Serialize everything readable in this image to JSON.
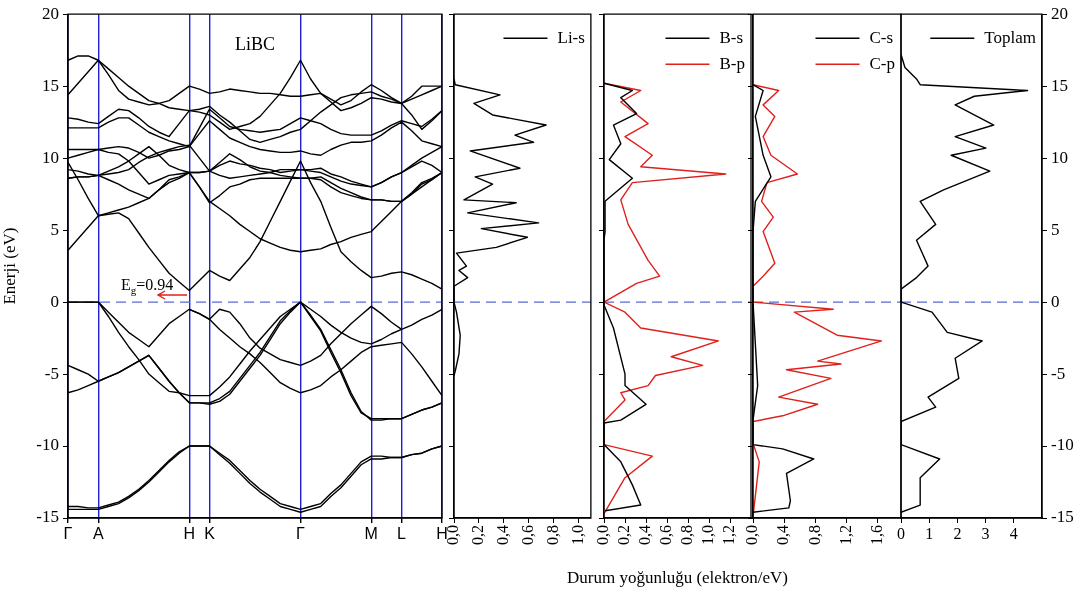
{
  "chart_data": [
    {
      "type": "line",
      "title": "LiBC",
      "ylabel": "Enerji (eV)",
      "marker": "none",
      "grid": "x",
      "legend": false,
      "categories": [
        "Γ",
        null,
        null,
        "A",
        null,
        null,
        null,
        null,
        null,
        null,
        null,
        null,
        "H",
        null,
        "K",
        null,
        null,
        null,
        null,
        null,
        null,
        null,
        null,
        "Γ",
        null,
        null,
        null,
        null,
        null,
        null,
        "M",
        null,
        null,
        "L",
        null,
        null,
        null,
        "H"
      ],
      "ylim": [
        -15,
        20
      ],
      "yticks": [
        -15,
        -10,
        -5,
        0,
        5,
        10,
        15,
        20
      ],
      "ref_lines": [
        {
          "axis": "y",
          "value": 0,
          "color": "#5a6ad0",
          "line_style": "dashed"
        }
      ],
      "annotations": [
        {
          "text": "E$_{g}$=0.94",
          "x": "H",
          "y": 0.94
        }
      ],
      "series": [
        {
          "color": "#000000",
          "values": [
            -14.2,
            -14.2,
            -14.3,
            -14.3,
            -14.1,
            -13.9,
            -13.5,
            -13.0,
            -12.4,
            -11.7,
            -11.0,
            -10.4,
            -10.0,
            -10.0,
            -10.0,
            -10.5,
            -11.0,
            -11.7,
            -12.4,
            -13.0,
            -13.5,
            -14.0,
            -14.2,
            -14.4,
            -14.2,
            -14.0,
            -13.3,
            -12.7,
            -11.9,
            -11.1,
            -10.7,
            -10.7,
            -10.8,
            -10.8,
            -10.6,
            -10.5,
            -10.2,
            -10.0
          ]
        },
        {
          "color": "#000000",
          "values": [
            -14.4,
            -14.4,
            -14.4,
            -14.4,
            -14.2,
            -14.0,
            -13.6,
            -13.1,
            -12.5,
            -11.8,
            -11.1,
            -10.5,
            -10.0,
            -10.0,
            -10.0,
            -10.6,
            -11.2,
            -11.9,
            -12.6,
            -13.2,
            -13.7,
            -14.2,
            -14.4,
            -14.6,
            -14.4,
            -14.2,
            -13.5,
            -12.9,
            -12.1,
            -11.3,
            -10.9,
            -10.9,
            -10.8,
            -10.8,
            -10.6,
            -10.5,
            -10.2,
            -10.0
          ]
        },
        {
          "color": "#000000",
          "values": [
            -6.3,
            -6.1,
            -5.8,
            -5.5,
            -5.2,
            -4.9,
            -4.5,
            -4.1,
            -3.7,
            -4.6,
            -5.5,
            -6.3,
            -7.0,
            -7.0,
            -7.0,
            -6.7,
            -6.2,
            -5.3,
            -4.4,
            -3.5,
            -2.4,
            -1.3,
            -0.6,
            0,
            -0.9,
            -1.9,
            -3.3,
            -4.7,
            -6.3,
            -7.6,
            -8.2,
            -8.2,
            -8.1,
            -8.1,
            -7.8,
            -7.5,
            -7.3,
            -7.0
          ]
        },
        {
          "color": "#000000",
          "values": [
            -4.4,
            -4.7,
            -5.0,
            -5.5,
            -5.2,
            -4.9,
            -4.5,
            -4.1,
            -3.7,
            -4.6,
            -5.5,
            -6.3,
            -7.0,
            -7.0,
            -7.1,
            -6.9,
            -6.4,
            -5.5,
            -4.6,
            -3.7,
            -2.6,
            -1.5,
            -0.7,
            0,
            -1.0,
            -2.0,
            -3.5,
            -4.9,
            -6.5,
            -7.7,
            -8.1,
            -8.1,
            -8.1,
            -8.1,
            -7.8,
            -7.5,
            -7.3,
            -7.0
          ]
        },
        {
          "color": "#000000",
          "values": [
            0,
            0,
            0,
            0,
            -0.7,
            -1.4,
            -2.1,
            -2.6,
            -3.1,
            -2.3,
            -1.5,
            -1.0,
            -0.5,
            -0.8,
            -1.2,
            -1.9,
            -2.5,
            -3.1,
            -3.6,
            -4.2,
            -4.9,
            -5.6,
            -6.0,
            -6.3,
            -6.1,
            -5.8,
            -5.2,
            -4.7,
            -4.1,
            -3.5,
            -3.1,
            -3.0,
            -2.9,
            -2.8,
            -3.6,
            -4.5,
            -5.5,
            -6.5
          ]
        },
        {
          "color": "#000000",
          "values": [
            0,
            0,
            0,
            0,
            -1.0,
            -2.1,
            -3.1,
            -4.0,
            -5.0,
            -5.6,
            -6.2,
            -6.3,
            -6.5,
            -6.5,
            -6.5,
            -5.9,
            -5.2,
            -4.3,
            -3.4,
            -2.6,
            -1.8,
            -1.0,
            -0.5,
            0,
            -0.5,
            -1.0,
            -1.6,
            -2.1,
            -2.5,
            -2.8,
            -2.9,
            -2.6,
            -2.2,
            -1.9,
            -1.6,
            -1.2,
            -0.9,
            -0.5
          ]
        },
        {
          "color": "#000000",
          "values": [
            null,
            null,
            null,
            null,
            null,
            null,
            null,
            null,
            null,
            null,
            null,
            null,
            -0.5,
            -0.8,
            -1.2,
            -0.5,
            -0.7,
            -1.5,
            -2.5,
            -3.2,
            -3.6,
            -4.0,
            -4.2,
            -4.4,
            -4.1,
            -3.7,
            -2.9,
            -2.2,
            -1.5,
            -0.9,
            -0.3,
            -0.8,
            -1.4,
            -1.9,
            null,
            null,
            null,
            null
          ]
        },
        {
          "color": "#000000",
          "values": [
            3.6,
            4.4,
            5.2,
            6.0,
            6.1,
            6.2,
            5.8,
            4.8,
            3.8,
            2.9,
            2.0,
            1.4,
            0.8,
            1.5,
            2.2,
            1.8,
            1.5,
            2.3,
            3.1,
            4.2,
            5.6,
            7.0,
            8.4,
            9.8,
            8.3,
            7.0,
            5.2,
            3.5,
            2.8,
            2.2,
            1.7,
            1.8,
            2.0,
            2.1,
            1.9,
            1.6,
            1.3,
            0.9
          ]
        },
        {
          "color": "#000000",
          "values": [
            8.6,
            8.7,
            8.7,
            8.8,
            8.5,
            8.2,
            7.8,
            7.5,
            7.2,
            7.8,
            8.5,
            8.7,
            9.0,
            8.0,
            7.0,
            6.5,
            6.0,
            5.4,
            4.9,
            4.4,
            4.1,
            3.8,
            3.6,
            3.5,
            3.6,
            3.7,
            4.0,
            4.2,
            4.5,
            4.7,
            4.9,
            5.6,
            6.3,
            7.0,
            7.5,
            8.2,
            8.5,
            9.0
          ]
        },
        {
          "color": "#000000",
          "values": [
            9.7,
            8.5,
            7.2,
            6.0,
            6.2,
            6.4,
            6.6,
            6.9,
            7.2,
            7.8,
            8.3,
            8.6,
            9.0,
            9.0,
            9.1,
            9.7,
            10.3,
            9.9,
            9.4,
            9.1,
            9.0,
            8.8,
            8.7,
            8.6,
            8.6,
            8.7,
            8.3,
            7.9,
            7.6,
            7.3,
            7.1,
            7.1,
            7.0,
            7.0,
            7.5,
            8.0,
            8.5,
            9.0
          ]
        },
        {
          "color": "#000000",
          "values": [
            10.0,
            10.2,
            10.4,
            10.6,
            10.4,
            10.3,
            9.8,
            9.0,
            8.2,
            8.5,
            8.8,
            8.9,
            9.0,
            9.0,
            9.1,
            9.5,
            9.8,
            9.6,
            9.5,
            9.3,
            9.2,
            9.0,
            9.1,
            9.2,
            9.1,
            9.0,
            8.7,
            8.4,
            8.2,
            8.1,
            8.0,
            8.3,
            8.7,
            9.0,
            9.4,
            9.8,
            9.5,
            9.0
          ]
        },
        {
          "color": "#000000",
          "values": [
            10.6,
            10.6,
            10.6,
            10.6,
            10.7,
            10.8,
            10.7,
            10.4,
            10.0,
            10.2,
            10.5,
            10.6,
            10.8,
            11.7,
            12.6,
            12.0,
            11.4,
            11.1,
            10.8,
            10.6,
            10.5,
            10.4,
            10.4,
            10.5,
            10.3,
            10.2,
            10.6,
            10.9,
            11.1,
            11.1,
            11.2,
            11.6,
            12.1,
            12.5,
            11.9,
            11.2,
            11.0,
            10.8
          ]
        },
        {
          "color": "#000000",
          "values": [
            12.1,
            12.1,
            12.1,
            12.1,
            12.5,
            12.8,
            12.8,
            12.3,
            11.8,
            11.5,
            11.2,
            11.0,
            10.8,
            12.1,
            13.4,
            12.8,
            12.2,
            12.0,
            11.9,
            11.8,
            11.9,
            12.0,
            12.4,
            12.8,
            12.6,
            12.4,
            12.0,
            11.7,
            11.6,
            11.6,
            11.6,
            11.9,
            12.3,
            12.6,
            12.4,
            12.2,
            12.7,
            13.3
          ]
        },
        {
          "color": "#000000",
          "values": [
            12.8,
            12.7,
            12.5,
            12.4,
            12.9,
            13.4,
            13.3,
            12.8,
            12.2,
            11.8,
            11.5,
            12.4,
            13.3,
            13.4,
            13.6,
            13.0,
            12.5,
            11.9,
            11.3,
            11.1,
            11.3,
            11.5,
            11.8,
            12.0,
            12.6,
            13.2,
            13.7,
            14.2,
            14.4,
            14.5,
            14.6,
            14.3,
            14.1,
            13.8,
            13.0,
            12.0,
            12.6,
            13.3
          ]
        },
        {
          "color": "#000000",
          "values": [
            14.4,
            15.2,
            16.0,
            16.8,
            15.8,
            14.7,
            14.1,
            13.9,
            13.7,
            13.8,
            14.0,
            14.5,
            15.0,
            14.8,
            14.5,
            14.6,
            14.8,
            14.7,
            14.6,
            14.5,
            14.5,
            14.4,
            14.3,
            14.3,
            14.4,
            14.5,
            14.1,
            13.7,
            14.0,
            14.6,
            15.1,
            14.7,
            14.2,
            13.8,
            14.3,
            15.0,
            15.0,
            15.0
          ]
        },
        {
          "color": "#000000",
          "values": [
            16.8,
            17.1,
            17.1,
            16.8,
            16.2,
            15.6,
            15.0,
            14.5,
            14.0,
            13.8,
            13.5,
            13.4,
            13.3,
            13.2,
            13.0,
            12.5,
            12.0,
            12.2,
            12.4,
            12.9,
            13.7,
            14.5,
            15.6,
            16.8,
            15.5,
            14.5,
            13.9,
            13.3,
            13.5,
            13.8,
            14.2,
            14.1,
            13.9,
            13.8,
            14.1,
            14.4,
            14.7,
            15.0
          ]
        },
        {
          "color": "#000000",
          "values": [
            9.2,
            9.1,
            8.9,
            8.8,
            9.1,
            9.4,
            9.8,
            10.3,
            10.8,
            10.2,
            9.5,
            9.2,
            9.0,
            8.0,
            6.9,
            7.4,
            8.0,
            8.2,
            8.5,
            8.6,
            8.6,
            8.6,
            8.6,
            8.6,
            8.6,
            8.5,
            8.0,
            7.6,
            7.4,
            7.2,
            7.1,
            7.1,
            7.0,
            7.0,
            7.6,
            8.3,
            8.6,
            9.0
          ]
        },
        {
          "color": "#000000",
          "values": [
            8.6,
            8.7,
            8.7,
            8.8,
            8.9,
            9.0,
            9.2,
            9.7,
            10.1,
            10.4,
            10.6,
            10.8,
            10.9,
            10.0,
            9.1,
            8.8,
            8.6,
            8.7,
            8.8,
            8.9,
            9.0,
            9.2,
            9.2,
            9.2,
            9.2,
            9.3,
            8.9,
            8.7,
            8.4,
            8.2,
            8.0,
            8.3,
            8.7,
            9.0,
            9.5,
            10.0,
            10.4,
            10.8
          ]
        }
      ]
    },
    {
      "type": "line",
      "marker": "none",
      "grid": false,
      "legend": "top right",
      "tick_labels": "x",
      "xlim": [
        0,
        1.1
      ],
      "xticks": [
        {
          "value": 0,
          "label": "0,0"
        },
        {
          "value": 0.2,
          "label": "0,2"
        },
        {
          "value": 0.4,
          "label": "0,4"
        },
        {
          "value": 0.6,
          "label": "0,6"
        },
        {
          "value": 0.8,
          "label": "0,8"
        },
        {
          "value": 1.0,
          "label": "1,0"
        }
      ],
      "ylim": [
        -15,
        20
      ],
      "yticks": [
        -15,
        -10,
        -5,
        0,
        5,
        10,
        15,
        20
      ],
      "ref_lines": [
        {
          "axis": "y",
          "value": 0,
          "color": "#5a6ad0",
          "line_style": "dashed"
        }
      ],
      "series": [
        {
          "name": "Li-s",
          "color": "#000000",
          "x": [
            0,
            0.01,
            0.37,
            0.16,
            0.31,
            0.74,
            0.49,
            0.64,
            0.13,
            0.53,
            0.17,
            0.31,
            0.08,
            0.5,
            0.11,
            0.68,
            0.22,
            0.59,
            0.34,
            0.02,
            0.1,
            0.04,
            0.11,
            0,
            0,
            0.02,
            0.05,
            0.04,
            0.01,
            0
          ],
          "values": [
            15.5,
            15.1,
            14.4,
            13.8,
            13.0,
            12.3,
            11.6,
            11.1,
            10.5,
            9.3,
            8.7,
            8.2,
            7.1,
            6.9,
            6.2,
            5.5,
            5.1,
            4.5,
            3.8,
            3.4,
            2.5,
            2.2,
            1.7,
            1.1,
            0,
            -0.7,
            -2.3,
            -3.6,
            -4.8,
            -5.1
          ]
        }
      ]
    },
    {
      "type": "line",
      "marker": "none",
      "grid": false,
      "legend": "top right",
      "tick_labels": "x",
      "xlabel": "Durum yoğunluğu (elektron/eV)",
      "xlim": [
        0,
        1.4
      ],
      "xticks": [
        {
          "value": 0,
          "label": "0,0"
        },
        {
          "value": 0.2,
          "label": "0,2"
        },
        {
          "value": 0.4,
          "label": "0,4"
        },
        {
          "value": 0.6,
          "label": "0,6"
        },
        {
          "value": 0.8,
          "label": "0,8"
        },
        {
          "value": 1.0,
          "label": "1,0"
        },
        {
          "value": 1.2,
          "label": "1,2"
        }
      ],
      "ylim": [
        -15,
        20
      ],
      "yticks": [
        -15,
        -10,
        -5,
        0,
        5,
        10,
        15,
        20
      ],
      "ref_lines": [
        {
          "axis": "y",
          "value": 0,
          "color": "#5a6ad0",
          "line_style": "dashed"
        }
      ],
      "series": [
        {
          "name": "B-s",
          "color": "#000000",
          "x": [
            0,
            0.27,
            0.16,
            0.31,
            0.09,
            0.16,
            0.05,
            0.27,
            0.01,
            0.01,
            0,
            0,
            0.09,
            0.2,
            0.2,
            0.4,
            0.16,
            0,
            0,
            0.16,
            0.27,
            0.35,
            0.01
          ],
          "values": [
            15.2,
            14.7,
            14.2,
            13.1,
            12.3,
            11.0,
            9.9,
            8.6,
            7.0,
            4.9,
            4.3,
            -0.2,
            -1.8,
            -5.0,
            -5.8,
            -7.1,
            -8.2,
            -8.4,
            -9.9,
            -11.1,
            -12.7,
            -14.1,
            -14.5
          ]
        },
        {
          "name": "B-p",
          "color": "#e0201b",
          "x": [
            0,
            0.35,
            0.16,
            0.42,
            0.2,
            0.46,
            0.35,
            1.16,
            0.27,
            0.16,
            0.23,
            0.42,
            0.53,
            0.31,
            0,
            0.2,
            0.35,
            1.09,
            0.64,
            0.94,
            0.49,
            0.42,
            0.16,
            0.2,
            0,
            0,
            0.46,
            0.2,
            0
          ],
          "values": [
            15.2,
            14.7,
            13.9,
            12.4,
            11.5,
            10.2,
            9.4,
            8.9,
            8.3,
            7.1,
            5.4,
            2.9,
            1.8,
            1.3,
            0,
            -0.7,
            -1.8,
            -2.7,
            -3.8,
            -4.4,
            -5.1,
            -5.8,
            -6.3,
            -6.8,
            -8.3,
            -9.9,
            -10.7,
            -12.2,
            -14.7
          ]
        }
      ]
    },
    {
      "type": "line",
      "marker": "none",
      "grid": false,
      "legend": "top right",
      "tick_labels": "x",
      "xlim": [
        0,
        1.9
      ],
      "xticks": [
        {
          "value": 0,
          "label": "0,0"
        },
        {
          "value": 0.4,
          "label": "0,4"
        },
        {
          "value": 0.8,
          "label": "0,8"
        },
        {
          "value": 1.2,
          "label": "1,2"
        },
        {
          "value": 1.6,
          "label": "1,6"
        }
      ],
      "ylim": [
        -15,
        20
      ],
      "yticks": [
        -15,
        -10,
        -5,
        0,
        5,
        10,
        15,
        20
      ],
      "ref_lines": [
        {
          "axis": "y",
          "value": 0,
          "color": "#5a6ad0",
          "line_style": "dashed"
        }
      ],
      "series": [
        {
          "name": "C-s",
          "color": "#000000",
          "x": [
            0,
            0.13,
            0.03,
            0.13,
            0.23,
            0.03,
            0,
            0,
            0.06,
            0,
            0,
            0.38,
            0.78,
            0.43,
            0.48,
            0.46,
            0
          ],
          "values": [
            15.1,
            14.7,
            12.9,
            10.2,
            8.7,
            7.0,
            4.9,
            0,
            -5.8,
            -8.2,
            -9.9,
            -10.2,
            -10.9,
            -11.9,
            -13.8,
            -14.3,
            -14.6
          ]
        },
        {
          "name": "C-p",
          "color": "#e0201b",
          "x": [
            0,
            0.33,
            0.13,
            0.28,
            0.13,
            0.23,
            0.57,
            0.18,
            0.11,
            0.26,
            0.13,
            0.28,
            0.13,
            0,
            0,
            1.03,
            0.53,
            1.08,
            1.65,
            0.83,
            1.13,
            0.43,
            1.0,
            0.33,
            0.83,
            0.38,
            0,
            0,
            0.08,
            0
          ],
          "values": [
            15.1,
            14.7,
            13.7,
            12.9,
            11.5,
            10.2,
            8.9,
            8.3,
            7.0,
            5.9,
            4.9,
            2.7,
            1.8,
            1.1,
            0,
            -0.5,
            -0.7,
            -2.3,
            -2.7,
            -4.1,
            -4.3,
            -4.7,
            -5.3,
            -6.6,
            -7.1,
            -7.9,
            -8.3,
            -9.8,
            -11.1,
            -14.9
          ]
        }
      ]
    },
    {
      "type": "line",
      "marker": "none",
      "grid": false,
      "legend": "top right",
      "xlim": [
        0,
        5
      ],
      "xticks": [
        0,
        1,
        2,
        3,
        4
      ],
      "ylim": [
        -15,
        20
      ],
      "yticks": [
        -15,
        -10,
        -5,
        0,
        5,
        10,
        15,
        20
      ],
      "ref_lines": [
        {
          "axis": "y",
          "value": 0,
          "color": "#5a6ad0",
          "line_style": "dashed"
        }
      ],
      "series": [
        {
          "name": "Toplam",
          "color": "#000000",
          "x": [
            0,
            0.14,
            0.55,
            0.68,
            4.49,
            2.6,
            1.92,
            3.29,
            1.92,
            3.01,
            1.78,
            3.15,
            1.51,
            0.68,
            1.23,
            0.55,
            0.96,
            0.55,
            0,
            0,
            1.1,
            1.64,
            2.88,
            1.92,
            2.05,
            0.96,
            1.23,
            0,
            0,
            1.37,
            0.68,
            0.68,
            0
          ],
          "values": [
            17.2,
            16.3,
            15.5,
            15.1,
            14.7,
            14.3,
            13.7,
            12.3,
            11.5,
            10.7,
            10.2,
            9.1,
            7.8,
            7.0,
            5.4,
            4.3,
            2.5,
            1.7,
            0.9,
            0,
            -0.7,
            -2.1,
            -2.7,
            -3.9,
            -5.3,
            -6.6,
            -7.3,
            -8.3,
            -9.9,
            -10.9,
            -12.2,
            -14.1,
            -14.6
          ]
        }
      ]
    }
  ]
}
